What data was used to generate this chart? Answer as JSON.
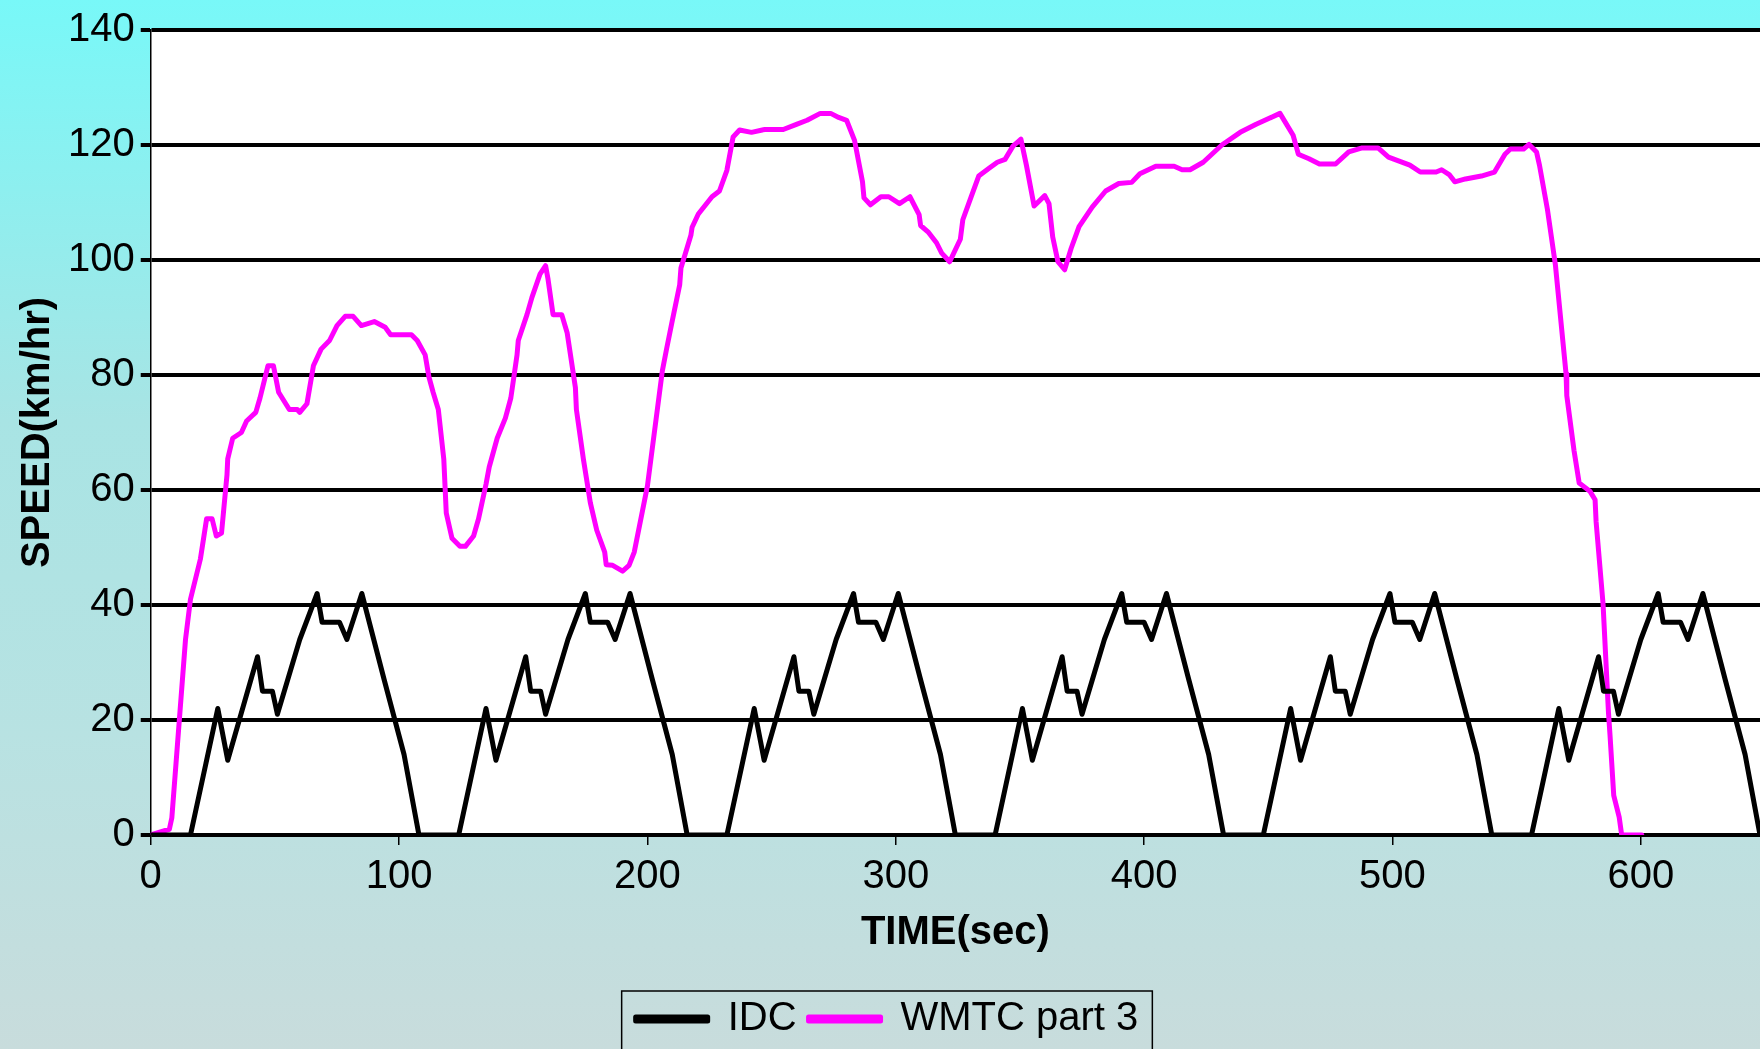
{
  "chart_data": {
    "type": "line",
    "xlabel": "TIME(sec)",
    "ylabel": "SPEED(km/hr)",
    "xlim": [
      0,
      648
    ],
    "ylim": [
      0,
      140
    ],
    "xticks": [
      0,
      100,
      200,
      300,
      400,
      500,
      600
    ],
    "yticks": [
      0,
      20,
      40,
      60,
      80,
      100,
      120,
      140
    ],
    "grid": "y",
    "legend": "bottom",
    "marker": "none",
    "line_style": "solid",
    "series": [
      {
        "name": "IDC",
        "color": "#000000",
        "x": [
          0,
          16,
          27,
          31,
          43,
          45,
          49,
          51,
          60,
          67,
          69,
          76,
          79,
          85,
          94,
          102,
          108,
          124,
          135,
          139,
          151,
          153,
          157,
          159,
          168,
          175,
          177,
          184,
          187,
          193,
          202,
          210,
          216,
          232,
          243,
          247,
          259,
          261,
          265,
          267,
          276,
          283,
          285,
          292,
          295,
          301,
          310,
          318,
          324,
          340,
          351,
          355,
          367,
          369,
          373,
          375,
          384,
          391,
          393,
          400,
          403,
          409,
          418,
          426,
          432,
          448,
          459,
          463,
          475,
          477,
          481,
          483,
          492,
          499,
          501,
          508,
          511,
          517,
          526,
          534,
          540,
          556,
          567,
          571,
          583,
          585,
          589,
          591,
          600,
          607,
          609,
          616,
          619,
          625,
          634,
          642,
          648
        ],
        "values": [
          0,
          0,
          22,
          13,
          31,
          25,
          25,
          21,
          34,
          42,
          37,
          37,
          34,
          42,
          27,
          14,
          0,
          0,
          22,
          13,
          31,
          25,
          25,
          21,
          34,
          42,
          37,
          37,
          34,
          42,
          27,
          14,
          0,
          0,
          22,
          13,
          31,
          25,
          25,
          21,
          34,
          42,
          37,
          37,
          34,
          42,
          27,
          14,
          0,
          0,
          22,
          13,
          31,
          25,
          25,
          21,
          34,
          42,
          37,
          37,
          34,
          42,
          27,
          14,
          0,
          0,
          22,
          13,
          31,
          25,
          25,
          21,
          34,
          42,
          37,
          37,
          34,
          42,
          27,
          14,
          0,
          0,
          22,
          13,
          31,
          25,
          25,
          21,
          34,
          42,
          37,
          37,
          34,
          42,
          27,
          14,
          0
        ]
      },
      {
        "name": "WMTC part 3",
        "color": "#ff00ff",
        "x": [
          0,
          7.5,
          8.5,
          14,
          16,
          20,
          22.5,
          24.7,
          26.4,
          28.5,
          30.7,
          31,
          33,
          36.5,
          38.6,
          42.3,
          44,
          47.2,
          49.4,
          51.5,
          55.8,
          59,
          60,
          62.9,
          65.5,
          68.6,
          72,
          75,
          78.3,
          81.5,
          84.8,
          90,
          94.4,
          96.6,
          105,
          107.3,
          110.5,
          112,
          113.7,
          115.8,
          118,
          119,
          121.3,
          124.5,
          126.7,
          130,
          132,
          135,
          136.3,
          139.5,
          142.8,
          145,
          147.5,
          148,
          151.5,
          153.5,
          156.8,
          159,
          160,
          162,
          165.5,
          167.7,
          171,
          171.4,
          174.2,
          177,
          179.6,
          182.8,
          183.4,
          186,
          190,
          192.6,
          194.7,
          200,
          206,
          207.7,
          209.8,
          213,
          213.5,
          217.5,
          218,
          220.5,
          226,
          229,
          232,
          234.5,
          237.1,
          241.9,
          247.2,
          254.7,
          260,
          264.3,
          269.6,
          273.8,
          277,
          280.2,
          283.4,
          286.6,
          287.2,
          289.8,
          294,
          297.2,
          301.5,
          305.7,
          309.4,
          310,
          313.2,
          316.4,
          318.5,
          321.7,
          326,
          327,
          330.2,
          333.4,
          337.7,
          340.9,
          344,
          347.2,
          350.4,
          352.6,
          355.7,
          360,
          361.7,
          363.2,
          365.3,
          368,
          370.6,
          373.8,
          379.1,
          384.5,
          389.8,
          395,
          398.3,
          404.7,
          412.1,
          415.3,
          418.5,
          423.8,
          431.3,
          438.7,
          445.1,
          454.7,
          460,
          462.1,
          466.4,
          470.6,
          477.1,
          482.4,
          487.8,
          494.2,
          498.4,
          502.7,
          507,
          511.2,
          517.6,
          519.8,
          523,
          525.1,
          529.4,
          535.8,
          541.1,
          545.3,
          547.5,
          552.8,
          555,
          558,
          559.2,
          562.4,
          565.6,
          569.9,
          570.2,
          573.1,
          575.2,
          579.5,
          581.6,
          582,
          584.8,
          587,
          587.6,
          589.1,
          591.3,
          592.3,
          600.4
        ],
        "values": [
          0,
          1,
          3,
          34,
          41,
          48,
          55,
          55,
          52,
          52.5,
          62.6,
          65.4,
          69,
          70,
          72,
          73.5,
          76,
          81.6,
          81.6,
          77,
          74,
          74,
          73.5,
          75,
          81.6,
          84.5,
          86,
          88.6,
          90.2,
          90.2,
          88.6,
          89.3,
          88.3,
          87,
          87,
          86,
          83.5,
          79.7,
          77,
          74,
          65.4,
          56,
          51.6,
          50.2,
          50.2,
          52,
          55,
          61,
          64,
          69,
          72.5,
          76,
          83.5,
          86,
          90.5,
          93.5,
          97.6,
          99,
          96.6,
          90.5,
          90.5,
          87.3,
          77.8,
          74,
          65.4,
          57.8,
          53,
          49.2,
          47,
          46.9,
          45.9,
          46.9,
          49.2,
          60.7,
          80.7,
          84.5,
          89,
          95.7,
          98.6,
          104.3,
          105.7,
          108,
          111,
          112,
          115.6,
          121.4,
          122.6,
          122.2,
          122.7,
          122.7,
          123.6,
          124.3,
          125.5,
          125.5,
          124.8,
          124.3,
          120.8,
          113.6,
          110.8,
          109.6,
          111,
          111,
          109.8,
          111,
          107.9,
          106,
          104.8,
          103,
          101.2,
          99.7,
          103.6,
          107,
          110.8,
          114.6,
          116,
          117,
          117.5,
          119.8,
          121,
          116.5,
          109.4,
          111.2,
          109.8,
          104,
          99.7,
          98.3,
          102,
          105.8,
          109.2,
          112,
          113.3,
          113.5,
          115,
          116.3,
          116.3,
          115.7,
          115.7,
          117,
          120,
          122.2,
          123.6,
          125.5,
          121.7,
          118.4,
          117.6,
          116.7,
          116.7,
          118.8,
          119.5,
          119.5,
          117.9,
          117.2,
          116.5,
          115.3,
          115.3,
          115.7,
          114.8,
          113.6,
          114.1,
          114.6,
          115.3,
          118.4,
          119.3,
          119.3,
          120.1,
          118.8,
          116.5,
          108.8,
          99.2,
          80.2,
          76.4,
          66.9,
          61.2,
          59.8,
          58.3,
          54.5,
          40.2,
          21.2,
          17.4,
          6.9,
          3.1,
          0,
          0
        ]
      }
    ]
  }
}
